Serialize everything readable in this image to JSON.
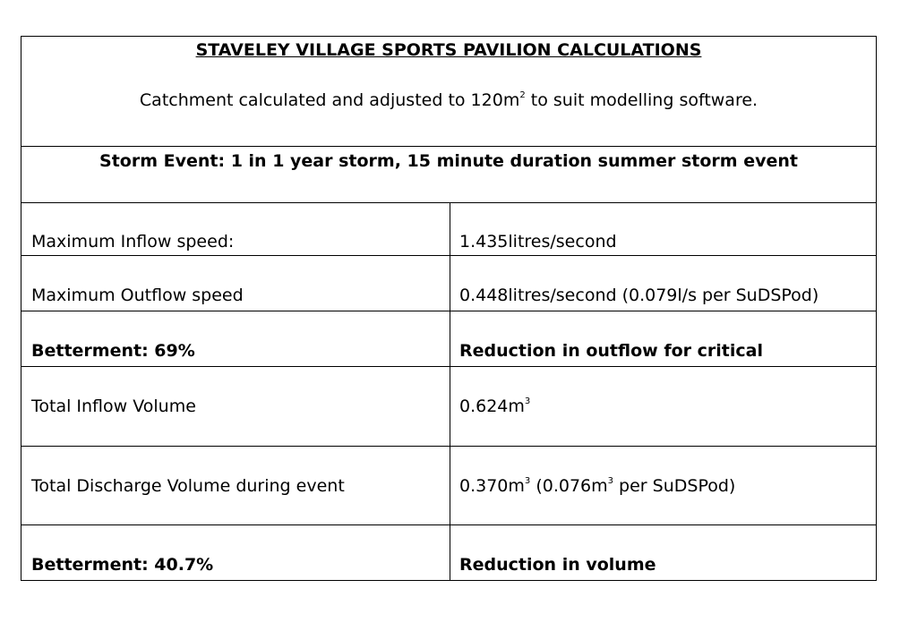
{
  "header": {
    "title": "STAVELEY VILLAGE SPORTS PAVILION CALCULATIONS",
    "subtitle_before": "Catchment calculated and adjusted to 120m",
    "subtitle_sup": "2",
    "subtitle_after": " to suit modelling software."
  },
  "storm_event": "Storm Event: 1 in 1 year storm, 15 minute duration summer storm event",
  "rows": [
    {
      "label": "Maximum Inflow speed:",
      "value": "1.435litres/second"
    },
    {
      "label": "Maximum Outflow speed",
      "value": "0.448litres/second (0.079l/s per SuDSPod)"
    },
    {
      "label": "Betterment: 69%",
      "value": "Reduction in outflow for critical"
    },
    {
      "label": "Total Inflow Volume",
      "value_a": "0.624m",
      "value_sup": "3"
    },
    {
      "label": "Total Discharge Volume during event",
      "value_a": "0.370m",
      "value_sup1": "3",
      "value_b": " (0.076m",
      "value_sup2": "3",
      "value_c": " per SuDSPod)"
    },
    {
      "label": "Betterment: 40.7%",
      "value": "Reduction in volume"
    }
  ]
}
